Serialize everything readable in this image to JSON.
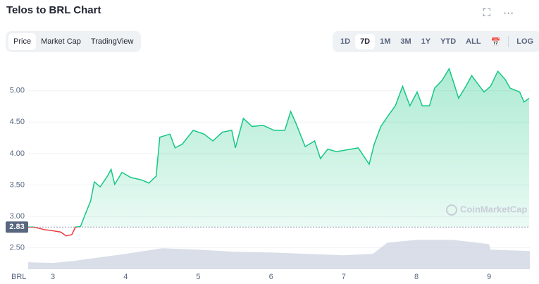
{
  "header": {
    "title": "Telos to BRL Chart",
    "tabs": [
      "Price",
      "Market Cap",
      "TradingView"
    ],
    "ranges": [
      "1D",
      "7D",
      "1M",
      "3M",
      "1Y",
      "YTD",
      "ALL"
    ],
    "log": "LOG"
  },
  "watermark": "CoinMarketCap",
  "chart_data": {
    "type": "line",
    "currency": "BRL",
    "xlim": [
      2.66,
      9.56
    ],
    "xticks": [
      3,
      4,
      5,
      6,
      7,
      8,
      9
    ],
    "ylim": [
      2.16,
      5.49
    ],
    "yticks": [
      {
        "value": 2.5,
        "label": "2.50"
      },
      {
        "value": 3,
        "label": "3.00"
      },
      {
        "value": 3.5,
        "label": "3.50"
      },
      {
        "value": 4,
        "label": "4.00"
      },
      {
        "value": 4.5,
        "label": "4.50"
      },
      {
        "value": 5,
        "label": "5.00"
      }
    ],
    "grid": true,
    "reference": 2.83,
    "series": [
      {
        "color": "#16c784",
        "down_color": "#ea3943",
        "x": [
          2.66,
          2.74,
          2.88,
          3.01,
          3.11,
          3.18,
          3.26,
          3.31,
          3.38,
          3.44,
          3.52,
          3.57,
          3.65,
          3.75,
          3.8,
          3.85,
          3.95,
          4.07,
          4.22,
          4.32,
          4.42,
          4.47,
          4.61,
          4.68,
          4.78,
          4.93,
          5.08,
          5.2,
          5.33,
          5.46,
          5.51,
          5.62,
          5.74,
          5.89,
          6.04,
          6.19,
          6.27,
          6.34,
          6.47,
          6.6,
          6.68,
          6.78,
          6.9,
          7.05,
          7.2,
          7.35,
          7.42,
          7.51,
          7.61,
          7.71,
          7.81,
          7.91,
          8.01,
          8.08,
          8.18,
          8.25,
          8.35,
          8.45,
          8.52,
          8.58,
          8.68,
          8.76,
          8.85,
          8.93,
          9.02,
          9.12,
          9.22,
          9.29,
          9.42,
          9.48,
          9.55
        ],
        "values": [
          2.83,
          2.83,
          2.79,
          2.77,
          2.75,
          2.69,
          2.71,
          2.83,
          2.84,
          3.02,
          3.25,
          3.55,
          3.47,
          3.64,
          3.75,
          3.51,
          3.7,
          3.62,
          3.58,
          3.53,
          3.64,
          4.26,
          4.31,
          4.09,
          4.15,
          4.37,
          4.31,
          4.2,
          4.34,
          4.37,
          4.09,
          4.56,
          4.43,
          4.45,
          4.37,
          4.37,
          4.67,
          4.49,
          4.11,
          4.2,
          3.92,
          4.07,
          4.03,
          4.06,
          4.09,
          3.83,
          4.15,
          4.43,
          4.6,
          4.76,
          5.07,
          4.76,
          4.98,
          4.76,
          4.76,
          5.04,
          5.16,
          5.35,
          5.1,
          4.88,
          5.07,
          5.24,
          5.1,
          4.98,
          5.07,
          5.31,
          5.18,
          5.04,
          4.98,
          4.82,
          4.88
        ]
      }
    ],
    "volume": {
      "color": "#cfd6e4",
      "ylim": [
        0,
        300
      ],
      "x": [
        2.66,
        3.0,
        3.3,
        3.5,
        4.0,
        4.5,
        5.0,
        5.5,
        6.0,
        6.5,
        7.0,
        7.4,
        7.6,
        8.0,
        8.5,
        9.0,
        9.02,
        9.56
      ],
      "values": [
        10,
        9,
        12,
        15,
        22,
        30,
        28,
        25,
        24,
        22,
        20,
        22,
        38,
        42,
        42,
        36,
        28,
        26
      ]
    }
  }
}
